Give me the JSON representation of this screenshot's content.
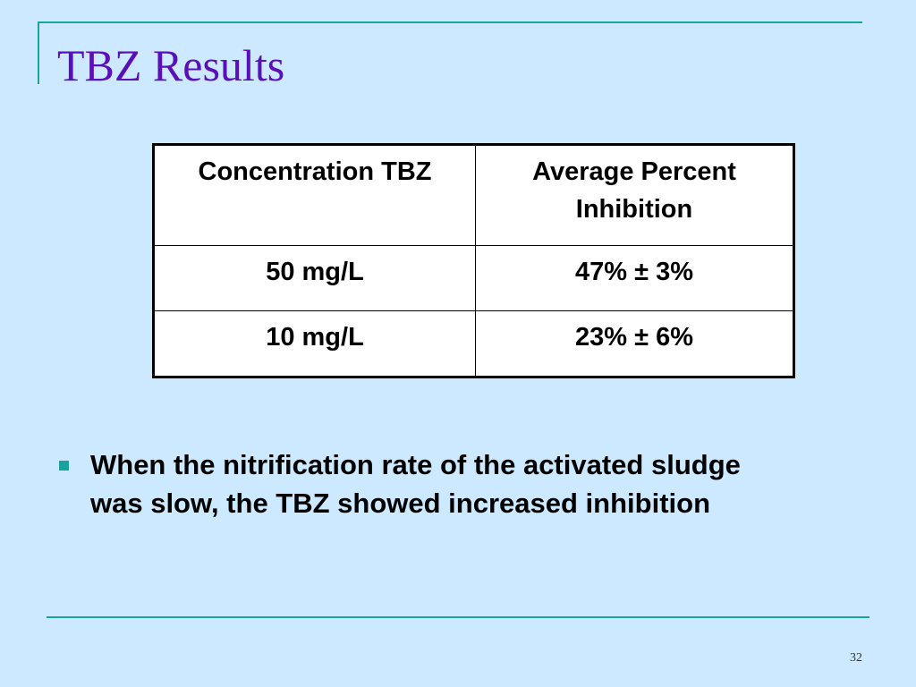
{
  "slide": {
    "title": "TBZ Results",
    "page_number": "32"
  },
  "table": {
    "headers": [
      "Concentration TBZ",
      "Average Percent Inhibition"
    ],
    "rows": [
      [
        "50 mg/L",
        "47% ± 3%"
      ],
      [
        "10 mg/L",
        "23% ± 6%"
      ]
    ]
  },
  "bullets": [
    "When the nitrification rate of the activated sludge was slow, the TBZ showed increased inhibition"
  ],
  "colors": {
    "background": "#cce9ff",
    "title": "#5b0fb8",
    "accent": "#1aa39c"
  }
}
